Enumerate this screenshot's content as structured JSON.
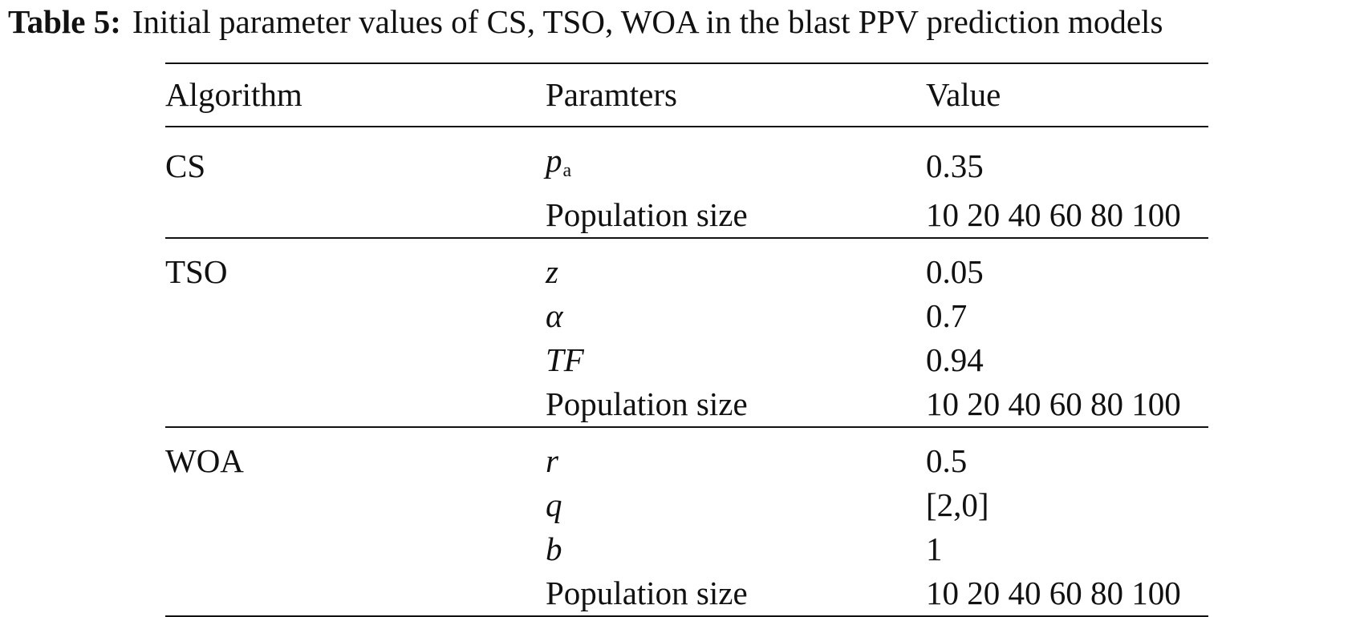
{
  "caption": {
    "label": "Table 5:",
    "text": "Initial parameter values of CS, TSO, WOA in the blast PPV prediction models"
  },
  "table": {
    "headers": [
      "Algorithm",
      "Paramters",
      "Value"
    ],
    "groups": [
      {
        "algorithm": "CS",
        "rows": [
          {
            "param": "p",
            "param_sub": "a",
            "value": "0.35"
          },
          {
            "param": "Population size",
            "value": "10 20 40 60 80 100"
          }
        ]
      },
      {
        "algorithm": "TSO",
        "rows": [
          {
            "param": "z",
            "value": "0.05"
          },
          {
            "param": "α",
            "value": "0.7"
          },
          {
            "param": "TF",
            "value": "0.94"
          },
          {
            "param": "Population size",
            "value": "10 20 40 60 80 100"
          }
        ]
      },
      {
        "algorithm": "WOA",
        "rows": [
          {
            "param": "r",
            "value": "0.5"
          },
          {
            "param": "q",
            "value": "[2,0]"
          },
          {
            "param": "b",
            "value": "1"
          },
          {
            "param": "Population size",
            "value": "10 20 40 60 80 100"
          }
        ]
      }
    ]
  }
}
